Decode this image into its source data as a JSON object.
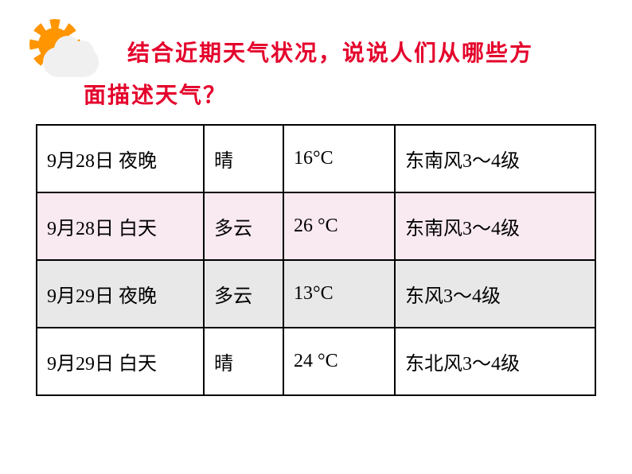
{
  "question": {
    "line1": "结合近期天气状况，说说人们从哪些方",
    "line2": "面描述天气？"
  },
  "colors": {
    "question_color": "#e4002b",
    "border_color": "#000000",
    "bg_white": "#ffffff",
    "bg_pink": "#f9e9f0",
    "bg_gray": "#e8e8e8",
    "sun_color": "#ff9500",
    "cloud_color": "#f0f0f0"
  },
  "table": {
    "columns": [
      "date_time",
      "condition",
      "temperature",
      "wind"
    ],
    "rows": [
      {
        "date_time": "9月28日  夜晚",
        "condition": " 晴",
        "temperature": "16°C",
        "wind": "东南风3～4级",
        "bg": "bg-white"
      },
      {
        "date_time": "9月28日  白天",
        "condition": "多云",
        "temperature": "26 °C",
        "wind": "东南风3～4级",
        "bg": "bg-pink"
      },
      {
        "date_time": "9月29日  夜晚",
        "condition": "多云",
        "temperature": "13°C",
        "wind": "东风3～4级",
        "bg": "bg-gray"
      },
      {
        "date_time": "9月29日  白天",
        "condition": "晴",
        "temperature": "24 °C",
        "wind": "东北风3～4级",
        "bg": "bg-white"
      }
    ]
  },
  "typography": {
    "question_fontsize": 28,
    "table_fontsize": 24,
    "question_weight": "bold"
  }
}
